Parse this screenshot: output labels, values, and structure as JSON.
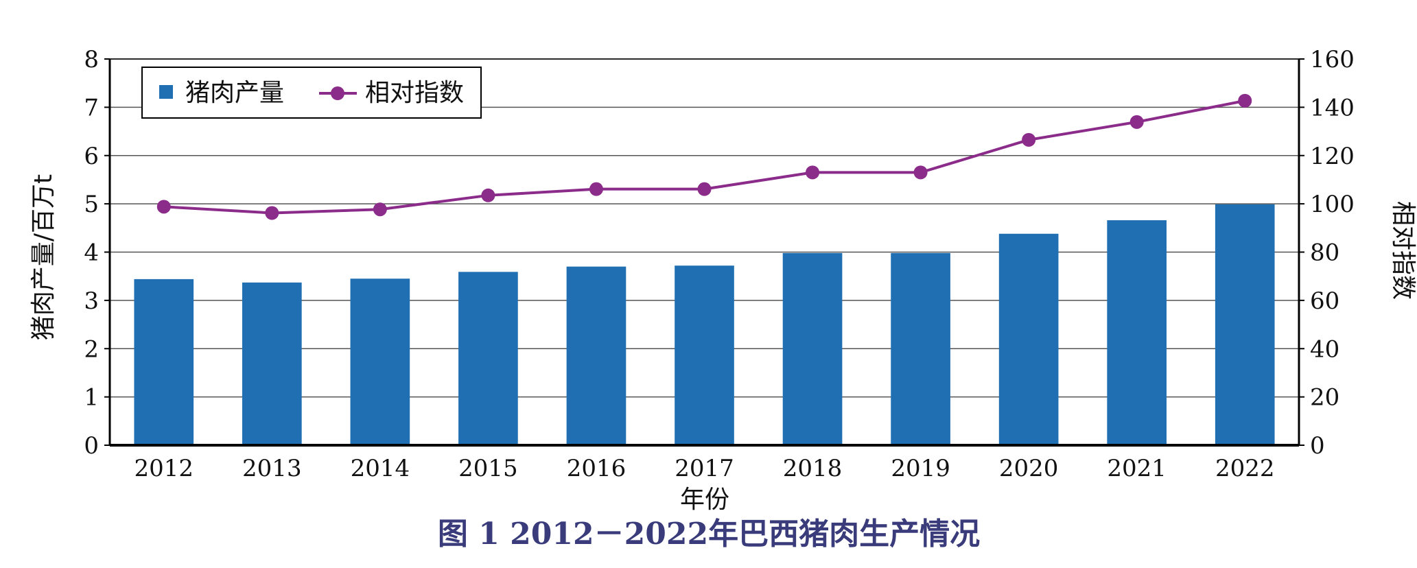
{
  "chart_data": {
    "type": "bar",
    "caption": "图 1 2012－2022年巴西猪肉生产情况",
    "xlabel": "年份",
    "ylabel": "猪肉产量/百万t",
    "y2label": "相对指数",
    "ylim": [
      0,
      8
    ],
    "y2lim": [
      0,
      160
    ],
    "yticks": [
      "0",
      "1",
      "2",
      "3",
      "4",
      "5",
      "6",
      "7",
      "8"
    ],
    "y2ticks": [
      "0",
      "20",
      "40",
      "60",
      "80",
      "100",
      "120",
      "140",
      "160"
    ],
    "grid": true,
    "legend_position": "top-left",
    "categories": [
      "2012",
      "2013",
      "2014",
      "2015",
      "2016",
      "2017",
      "2018",
      "2019",
      "2020",
      "2021",
      "2022"
    ],
    "series": [
      {
        "name": "猪肉产量",
        "type": "bar",
        "axis": "left",
        "color": "#1f6fb2",
        "values": [
          3.44,
          3.37,
          3.45,
          3.59,
          3.7,
          3.72,
          3.98,
          3.98,
          4.38,
          4.66,
          4.99
        ]
      },
      {
        "name": "相对指数",
        "type": "line",
        "axis": "right",
        "color": "#8b2b8a",
        "values": [
          98.8,
          96.2,
          97.7,
          103.5,
          106.1,
          106.1,
          113.0,
          113.0,
          126.5,
          133.9,
          142.7
        ]
      }
    ]
  }
}
